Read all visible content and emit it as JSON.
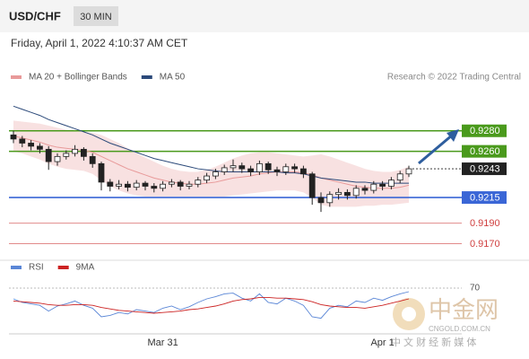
{
  "chart_data": {
    "type": "candlestick",
    "title": "USD/CHF",
    "timeframe": "30 MIN",
    "subtitle": "Friday, April 1, 2022 4:10:37 AM CET",
    "credit": "Research © 2022 Trading Central",
    "up_color": "#ffffff",
    "down_color": "#222222",
    "ylim": [
      0.916,
      0.932
    ],
    "categories": [
      null,
      null,
      null,
      null,
      null,
      null,
      null,
      null,
      null,
      null,
      null,
      null,
      null,
      null,
      null,
      null,
      null,
      "Mar 31",
      null,
      null,
      null,
      null,
      null,
      null,
      null,
      null,
      null,
      null,
      null,
      null,
      null,
      null,
      null,
      null,
      null,
      null,
      null,
      null,
      null,
      null,
      null,
      null,
      "Apr 1",
      null,
      null,
      null
    ],
    "candles": [
      [
        0.9276,
        0.928,
        0.9268,
        0.9272
      ],
      [
        0.9272,
        0.9275,
        0.9264,
        0.9268
      ],
      [
        0.9268,
        0.9271,
        0.9261,
        0.9265
      ],
      [
        0.9265,
        0.9268,
        0.9258,
        0.9262
      ],
      [
        0.9262,
        0.9265,
        0.9242,
        0.925
      ],
      [
        0.925,
        0.9258,
        0.9246,
        0.9255
      ],
      [
        0.9255,
        0.9261,
        0.9252,
        0.9258
      ],
      [
        0.9258,
        0.9266,
        0.9255,
        0.9262
      ],
      [
        0.9262,
        0.9264,
        0.9251,
        0.9255
      ],
      [
        0.9255,
        0.9258,
        0.9244,
        0.9248
      ],
      [
        0.9248,
        0.925,
        0.9222,
        0.923
      ],
      [
        0.923,
        0.9233,
        0.9221,
        0.9226
      ],
      [
        0.9226,
        0.9232,
        0.9223,
        0.9228
      ],
      [
        0.9228,
        0.9231,
        0.9221,
        0.9225
      ],
      [
        0.9225,
        0.9232,
        0.9222,
        0.9229
      ],
      [
        0.9229,
        0.9231,
        0.9222,
        0.9226
      ],
      [
        0.9226,
        0.9229,
        0.922,
        0.9224
      ],
      [
        0.9224,
        0.9231,
        0.9221,
        0.9228
      ],
      [
        0.9228,
        0.9233,
        0.9225,
        0.923
      ],
      [
        0.923,
        0.9232,
        0.9222,
        0.9226
      ],
      [
        0.9226,
        0.9231,
        0.9223,
        0.9228
      ],
      [
        0.9228,
        0.9235,
        0.9225,
        0.9232
      ],
      [
        0.9232,
        0.9239,
        0.9229,
        0.9236
      ],
      [
        0.9236,
        0.9243,
        0.9233,
        0.924
      ],
      [
        0.924,
        0.9247,
        0.9237,
        0.9244
      ],
      [
        0.9244,
        0.9252,
        0.924,
        0.9246
      ],
      [
        0.9246,
        0.9249,
        0.9239,
        0.9243
      ],
      [
        0.9243,
        0.9246,
        0.9236,
        0.924
      ],
      [
        0.924,
        0.9251,
        0.9237,
        0.9248
      ],
      [
        0.9248,
        0.925,
        0.9238,
        0.9242
      ],
      [
        0.9242,
        0.9245,
        0.9236,
        0.924
      ],
      [
        0.924,
        0.9248,
        0.9237,
        0.9245
      ],
      [
        0.9245,
        0.9248,
        0.9239,
        0.9243
      ],
      [
        0.9243,
        0.9246,
        0.9234,
        0.9238
      ],
      [
        0.9238,
        0.924,
        0.9208,
        0.9215
      ],
      [
        0.9215,
        0.922,
        0.9201,
        0.921
      ],
      [
        0.921,
        0.9221,
        0.9206,
        0.9218
      ],
      [
        0.9218,
        0.9224,
        0.9213,
        0.922
      ],
      [
        0.922,
        0.9223,
        0.9213,
        0.9217
      ],
      [
        0.9217,
        0.9227,
        0.9214,
        0.9224
      ],
      [
        0.9224,
        0.9227,
        0.9218,
        0.9222
      ],
      [
        0.9222,
        0.9231,
        0.9219,
        0.9228
      ],
      [
        0.9228,
        0.9231,
        0.9222,
        0.9226
      ],
      [
        0.9226,
        0.9235,
        0.9223,
        0.9232
      ],
      [
        0.9232,
        0.9241,
        0.9229,
        0.9238
      ],
      [
        0.9238,
        0.9246,
        0.9235,
        0.9243
      ]
    ],
    "series": [
      {
        "name": "MA 20 + Bollinger Bands",
        "color": "#e89a9a",
        "values": [
          0.9275,
          0.9273,
          0.9271,
          0.9269,
          0.9266,
          0.9264,
          0.9263,
          0.9262,
          0.9261,
          0.9259,
          0.9255,
          0.9251,
          0.9247,
          0.9243,
          0.924,
          0.9237,
          0.9234,
          0.9232,
          0.923,
          0.9229,
          0.9228,
          0.9228,
          0.9229,
          0.923,
          0.9232,
          0.9234,
          0.9235,
          0.9236,
          0.9238,
          0.9239,
          0.924,
          0.924,
          0.924,
          0.9239,
          0.9237,
          0.9234,
          0.9232,
          0.923,
          0.9228,
          0.9226,
          0.9225,
          0.9224,
          0.9224,
          0.9224,
          0.9225,
          0.9227
        ],
        "upper": [
          0.929,
          0.9289,
          0.9288,
          0.9287,
          0.9285,
          0.9283,
          0.9281,
          0.928,
          0.9279,
          0.9278,
          0.9276,
          0.9272,
          0.9268,
          0.9263,
          0.9258,
          0.9254,
          0.925,
          0.9246,
          0.9243,
          0.9241,
          0.924,
          0.924,
          0.9242,
          0.9245,
          0.9249,
          0.9253,
          0.9256,
          0.9258,
          0.9259,
          0.9259,
          0.9258,
          0.9257,
          0.9256,
          0.9255,
          0.9256,
          0.9257,
          0.9255,
          0.9252,
          0.9249,
          0.9246,
          0.9243,
          0.9241,
          0.924,
          0.924,
          0.9242,
          0.9245
        ],
        "lower": [
          0.926,
          0.9258,
          0.9255,
          0.9252,
          0.9248,
          0.9245,
          0.9243,
          0.9242,
          0.9241,
          0.9238,
          0.9232,
          0.9226,
          0.9222,
          0.9219,
          0.9217,
          0.9216,
          0.9216,
          0.9216,
          0.9216,
          0.9216,
          0.9216,
          0.9216,
          0.9216,
          0.9216,
          0.9216,
          0.9217,
          0.9218,
          0.9219,
          0.922,
          0.9221,
          0.9222,
          0.9222,
          0.9222,
          0.922,
          0.9215,
          0.9208,
          0.9206,
          0.9206,
          0.9206,
          0.9206,
          0.9207,
          0.9207,
          0.9208,
          0.9208,
          0.9209,
          0.921
        ]
      },
      {
        "name": "MA 50",
        "color": "#2c4a7a",
        "values": [
          0.9304,
          0.9301,
          0.9298,
          0.9295,
          0.9291,
          0.9288,
          0.9285,
          0.9282,
          0.9279,
          0.9276,
          0.9272,
          0.9268,
          0.9265,
          0.9262,
          0.9259,
          0.9256,
          0.9253,
          0.9251,
          0.9249,
          0.9247,
          0.9245,
          0.9243,
          0.9242,
          0.9241,
          0.924,
          0.924,
          0.924,
          0.924,
          0.924,
          0.924,
          0.924,
          0.9239,
          0.9239,
          0.9238,
          0.9236,
          0.9234,
          0.9233,
          0.9232,
          0.9231,
          0.923,
          0.923,
          0.9229,
          0.9229,
          0.9229,
          0.9229,
          0.9229
        ]
      }
    ],
    "levels": [
      {
        "value": 0.928,
        "label": "0.9280",
        "color": "#4a9a1c",
        "boxed": true,
        "line": "solid"
      },
      {
        "value": 0.926,
        "label": "0.9260",
        "color": "#4a9a1c",
        "boxed": true,
        "line": "solid"
      },
      {
        "value": 0.9243,
        "label": "0.9243",
        "color": "#222222",
        "boxed": true,
        "line": "dotted"
      },
      {
        "value": 0.9215,
        "label": "0.9215",
        "color": "#3a66d6",
        "boxed": true,
        "line": "solid"
      },
      {
        "value": 0.919,
        "label": "0.9190",
        "color": "#d04040",
        "boxed": false,
        "line": "thin"
      },
      {
        "value": 0.917,
        "label": "0.9170",
        "color": "#d04040",
        "boxed": false,
        "line": "thin"
      }
    ],
    "rsi": {
      "ylim": [
        10,
        90
      ],
      "yticks": [
        70
      ],
      "series": [
        {
          "name": "RSI",
          "color": "#5a86d6",
          "values": [
            55,
            50,
            48,
            46,
            38,
            45,
            48,
            52,
            46,
            42,
            30,
            32,
            36,
            34,
            40,
            38,
            36,
            42,
            45,
            40,
            44,
            50,
            55,
            58,
            62,
            63,
            56,
            52,
            62,
            50,
            48,
            56,
            52,
            46,
            30,
            28,
            42,
            46,
            44,
            52,
            50,
            56,
            53,
            58,
            62,
            65
          ]
        },
        {
          "name": "9MA",
          "color": "#cc2222",
          "values": [
            52,
            51,
            50,
            49,
            47,
            46,
            46,
            47,
            47,
            46,
            43,
            41,
            39,
            38,
            37,
            36,
            35,
            36,
            37,
            38,
            40,
            41,
            43,
            45,
            48,
            52,
            54,
            55,
            57,
            57,
            56,
            56,
            55,
            54,
            51,
            47,
            45,
            44,
            43,
            43,
            42,
            44,
            46,
            49,
            52,
            55
          ]
        }
      ]
    },
    "watermark": {
      "name": "中金网",
      "url": "CNGOLD.COM.CN",
      "slogan": "中 文 财 经 新 媒 体"
    }
  }
}
